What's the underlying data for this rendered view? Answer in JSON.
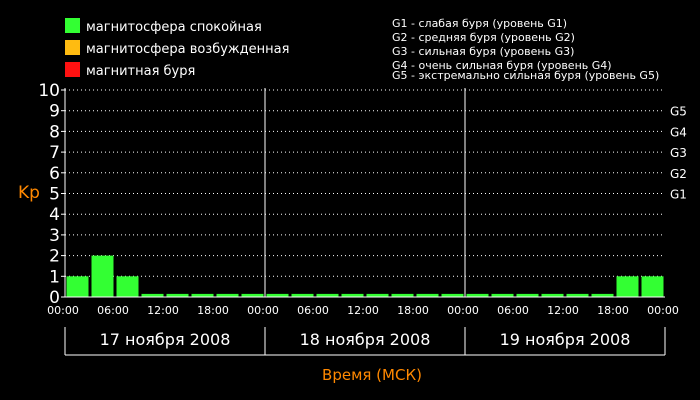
{
  "colors": {
    "quiet": "#33ff33",
    "disturbed": "#ffbb11",
    "storm": "#ff1111",
    "axis_label": "#ff8800",
    "background": "#000000"
  },
  "legend": [
    {
      "label": "магнитосфера спокойная",
      "color": "#33ff33"
    },
    {
      "label": "магнитосфера возбужденная",
      "color": "#ffbb11"
    },
    {
      "label": "магнитная буря",
      "color": "#ff1111"
    }
  ],
  "storm_scale": [
    "G1 - слабая буря (уровень G1)",
    "G2 - средняя буря (уровень G2)",
    "G3 - сильная буря (уровень G3)",
    "G4 - очень сильная буря (уровень G4)",
    "G5 - экстремально сильная буря (уровень G5)"
  ],
  "chart_data": {
    "type": "bar",
    "ylabel": "Kp",
    "xlabel": "Время (МСК)",
    "ylim": [
      0,
      10
    ],
    "yticks": [
      "0",
      "1",
      "2",
      "3",
      "4",
      "5",
      "6",
      "7",
      "8",
      "9",
      "10"
    ],
    "grid": true,
    "g_levels": [
      {
        "label": "G1",
        "kp": 5
      },
      {
        "label": "G2",
        "kp": 6
      },
      {
        "label": "G3",
        "kp": 7
      },
      {
        "label": "G4",
        "kp": 8
      },
      {
        "label": "G5",
        "kp": 9
      }
    ],
    "x_tick_labels": [
      "00:00",
      "06:00",
      "12:00",
      "18:00",
      "00:00",
      "06:00",
      "12:00",
      "18:00",
      "00:00",
      "06:00",
      "12:00",
      "18:00",
      "00:00"
    ],
    "days": [
      "17 ноября 2008",
      "18 ноября 2008",
      "19 ноября 2008"
    ],
    "series": [
      {
        "values": [
          1,
          2,
          1,
          0.15,
          0.15,
          0.15,
          0.15,
          0.15,
          0.15,
          0.15,
          0.15,
          0.15,
          0.15,
          0.15,
          0.15,
          0.15,
          0.15,
          0.15,
          0.15,
          0.15,
          0.15,
          0.15,
          1,
          1
        ]
      }
    ]
  }
}
